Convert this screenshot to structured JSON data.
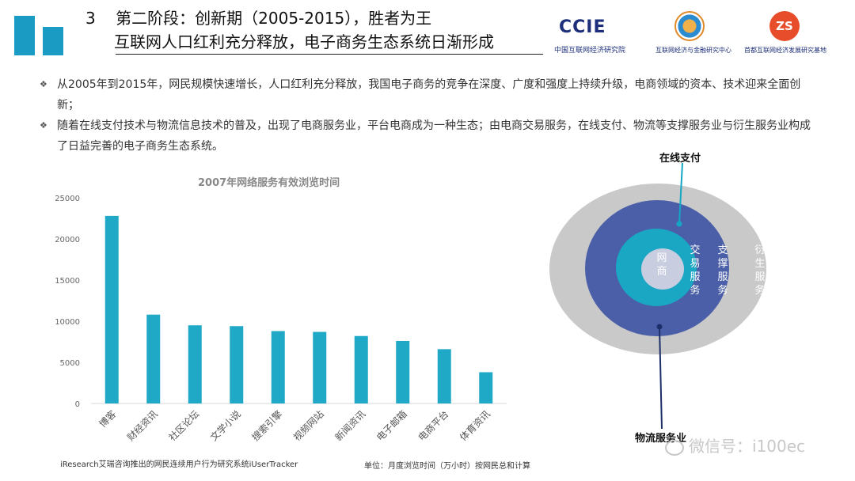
{
  "header": {
    "number": "3",
    "title_line1": "第二阶段：创新期（2005-2015），胜者为王",
    "title_line2": "互联网人口红利充分释放，电子商务生态系统日渐形成",
    "logos": {
      "ccie_text": "CCIE",
      "ccie_sub": "中国互联网经济研究院",
      "center_sub": "互联网经济与金融研究中心",
      "zs_text": "ZS",
      "zs_sub": "首都互联网经济发展研究基地"
    }
  },
  "bullets": [
    "从2005年到2015年，网民规模快速增长，人口红利充分释放，我国电子商务的竞争在深度、广度和强度上持续升级，电商领域的资本、技术迎来全面创新；",
    "随着在线支付技术与物流信息技术的普及，出现了电商服务业，平台电商成为一种生态；由电商交易服务，在线支付、物流等支撑服务业与衍生服务业构成了日益完善的电子商务生态系统。"
  ],
  "chart_data": {
    "type": "bar",
    "title": "2007年网络服务有效浏览时间",
    "categories": [
      "博客",
      "财经资讯",
      "社区论坛",
      "文学小说",
      "搜索引擎",
      "视频网站",
      "新闻资讯",
      "电子邮箱",
      "电商平台",
      "体育资讯"
    ],
    "values": [
      22800,
      10800,
      9500,
      9400,
      8800,
      8700,
      8200,
      7600,
      6600,
      3800
    ],
    "ylim": [
      0,
      25000
    ],
    "yticks": [
      0,
      5000,
      10000,
      15000,
      20000,
      25000
    ],
    "grid": false,
    "color": "#20a9c6"
  },
  "footer": {
    "source": "iResearch艾瑞咨询推出的网民连续用户行为研究系统iUserTracker",
    "unit": "单位：月度浏览时间（万小时）按网民总和计算"
  },
  "diagram": {
    "rings": [
      {
        "label": "衍生服务",
        "color": "#c9c9c9"
      },
      {
        "label": "支撑服务",
        "color": "#4a5fa8"
      },
      {
        "label": "交易服务",
        "color": "#1aa7c4"
      },
      {
        "label": "网商",
        "color": "#c9cde0"
      }
    ],
    "callout_top": "在线支付",
    "callout_bottom": "物流服务业"
  },
  "watermark": "微信号：i100ec"
}
